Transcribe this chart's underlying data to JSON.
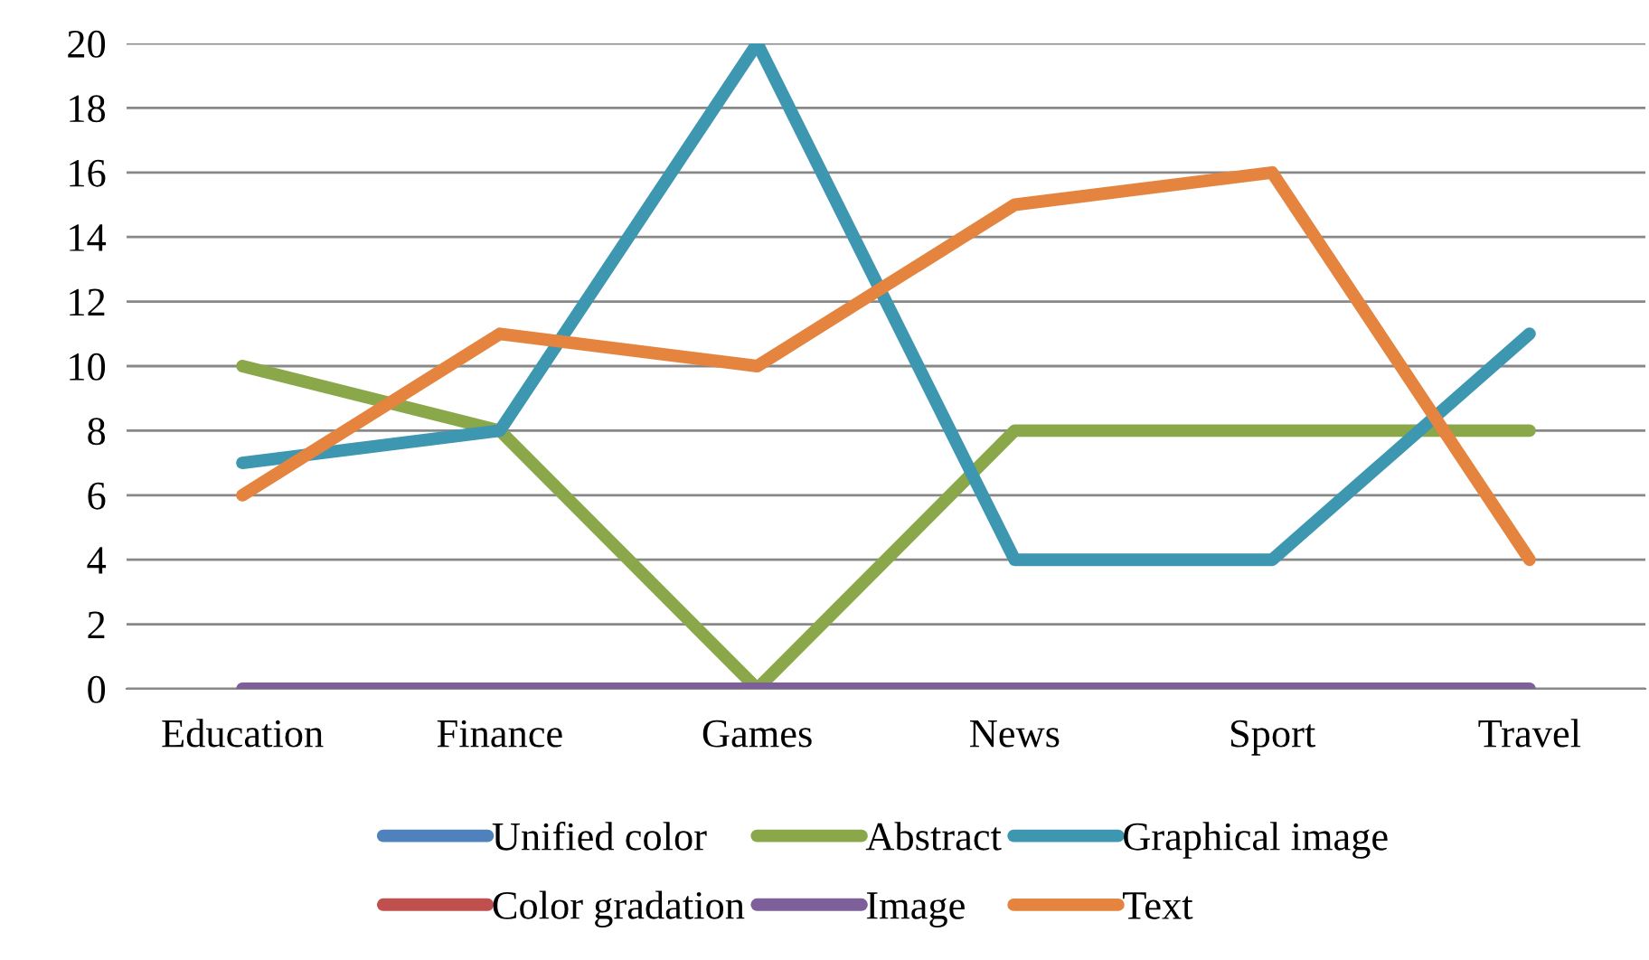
{
  "chart_data": {
    "type": "line",
    "categories": [
      "Education",
      "Finance",
      "Games",
      "News",
      "Sport",
      "Travel"
    ],
    "series": [
      {
        "name": "Unified color",
        "color": "#4f81bd",
        "values": [
          null,
          null,
          null,
          null,
          null,
          null
        ]
      },
      {
        "name": "Color gradation",
        "color": "#c0504d",
        "values": [
          null,
          null,
          null,
          null,
          null,
          null
        ]
      },
      {
        "name": "Abstract",
        "color": "#8aa84a",
        "values": [
          10,
          8,
          0,
          8,
          8,
          8
        ]
      },
      {
        "name": "Image",
        "color": "#7d5f99",
        "values": [
          0,
          0,
          0,
          0,
          0,
          0
        ]
      },
      {
        "name": "Graphical image",
        "color": "#3e97b0",
        "values": [
          7,
          8,
          20,
          4,
          4,
          11
        ]
      },
      {
        "name": "Text",
        "color": "#e5843e",
        "values": [
          6,
          11,
          10,
          15,
          16,
          4
        ]
      }
    ],
    "ylim": [
      0,
      20
    ],
    "yticks": [
      0,
      2,
      4,
      6,
      8,
      10,
      12,
      14,
      16,
      18,
      20
    ],
    "grid": "y",
    "legend": "bottom",
    "marker": "none",
    "line_style": "solid"
  }
}
